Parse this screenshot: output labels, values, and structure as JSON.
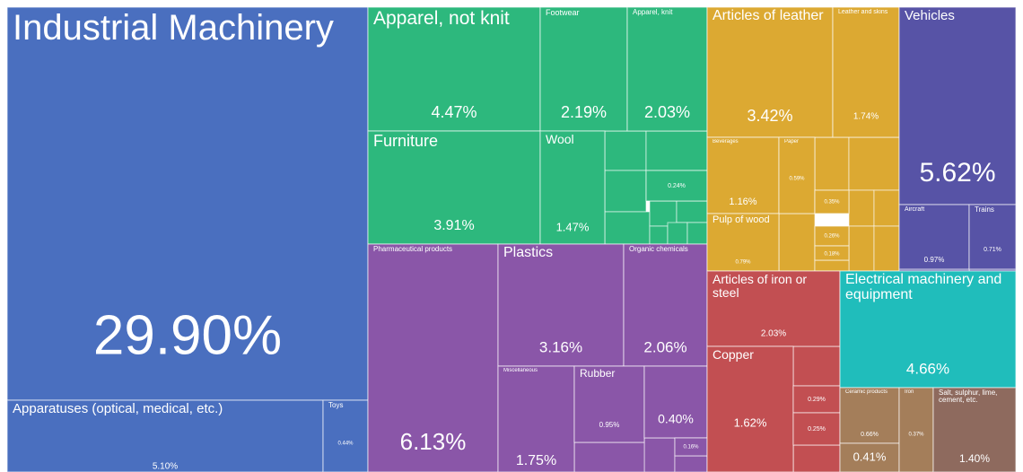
{
  "chart_data": {
    "type": "treemap",
    "categories": [
      "Industrial Machinery",
      "Apparatuses (optical, medical, etc.)",
      "Toys",
      "Apparel, not knit",
      "Footwear",
      "Apparel, knit",
      "Furniture",
      "Wool",
      null,
      "Pharmaceutical products",
      "Plastics",
      "Organic chemicals",
      "Miscellaneous",
      "Rubber",
      null,
      null,
      "Articles of leather",
      "Leather and skins",
      "Beverages",
      "Paper",
      "Pulp of wood",
      null,
      null,
      null,
      "Vehicles",
      "Aircraft",
      "Trains",
      "Articles of iron or steel",
      "Copper",
      null,
      null,
      "Electrical machinery and equipment",
      "Ceramic products",
      null,
      "Iron",
      "Salt, sulphur, lime, cement, etc."
    ],
    "values": [
      29.9,
      5.1,
      0.44,
      4.47,
      2.19,
      2.03,
      3.91,
      1.47,
      0.24,
      6.13,
      3.16,
      2.06,
      1.75,
      0.95,
      0.4,
      0.16,
      3.42,
      1.74,
      1.16,
      0.59,
      0.79,
      0.35,
      0.26,
      0.18,
      5.62,
      0.97,
      0.71,
      2.03,
      1.62,
      0.29,
      0.25,
      4.66,
      0.66,
      0.41,
      0.37,
      1.4
    ],
    "value_labels": [
      "29.90%",
      "5.10%",
      "0.44%",
      "4.47%",
      "2.19%",
      "2.03%",
      "3.91%",
      "1.47%",
      "0.24%",
      "6.13%",
      "3.16%",
      "2.06%",
      "1.75%",
      "0.95%",
      "0.40%",
      "0.16%",
      "3.42%",
      "1.74%",
      "1.16%",
      "0.59%",
      "0.79%",
      "0.35%",
      "0.26%",
      "0.18%",
      "5.62%",
      "0.97%",
      "0.71%",
      "2.03%",
      "1.62%",
      "0.29%",
      "0.25%",
      "4.66%",
      "0.66%",
      "0.41%",
      "0.37%",
      "1.40%"
    ],
    "colors": [
      "#4a6fbf",
      "#4a6fbf",
      "#4a6fbf",
      "#2db87d",
      "#2db87d",
      "#2db87d",
      "#2db87d",
      "#2db87d",
      "#2db87d",
      "#8a56a8",
      "#8a56a8",
      "#8a56a8",
      "#8a56a8",
      "#8a56a8",
      "#8a56a8",
      "#8a56a8",
      "#dca932",
      "#dca932",
      "#dca932",
      "#dca932",
      "#dca932",
      "#dca932",
      "#dca932",
      "#dca932",
      "#5753a6",
      "#5753a6",
      "#5753a6",
      "#c24f52",
      "#c24f52",
      "#c24f52",
      "#c24f52",
      "#20bdbb",
      "#a47e5a",
      "#a47e5a",
      "#a47e5a",
      "#8e6a5e"
    ]
  }
}
